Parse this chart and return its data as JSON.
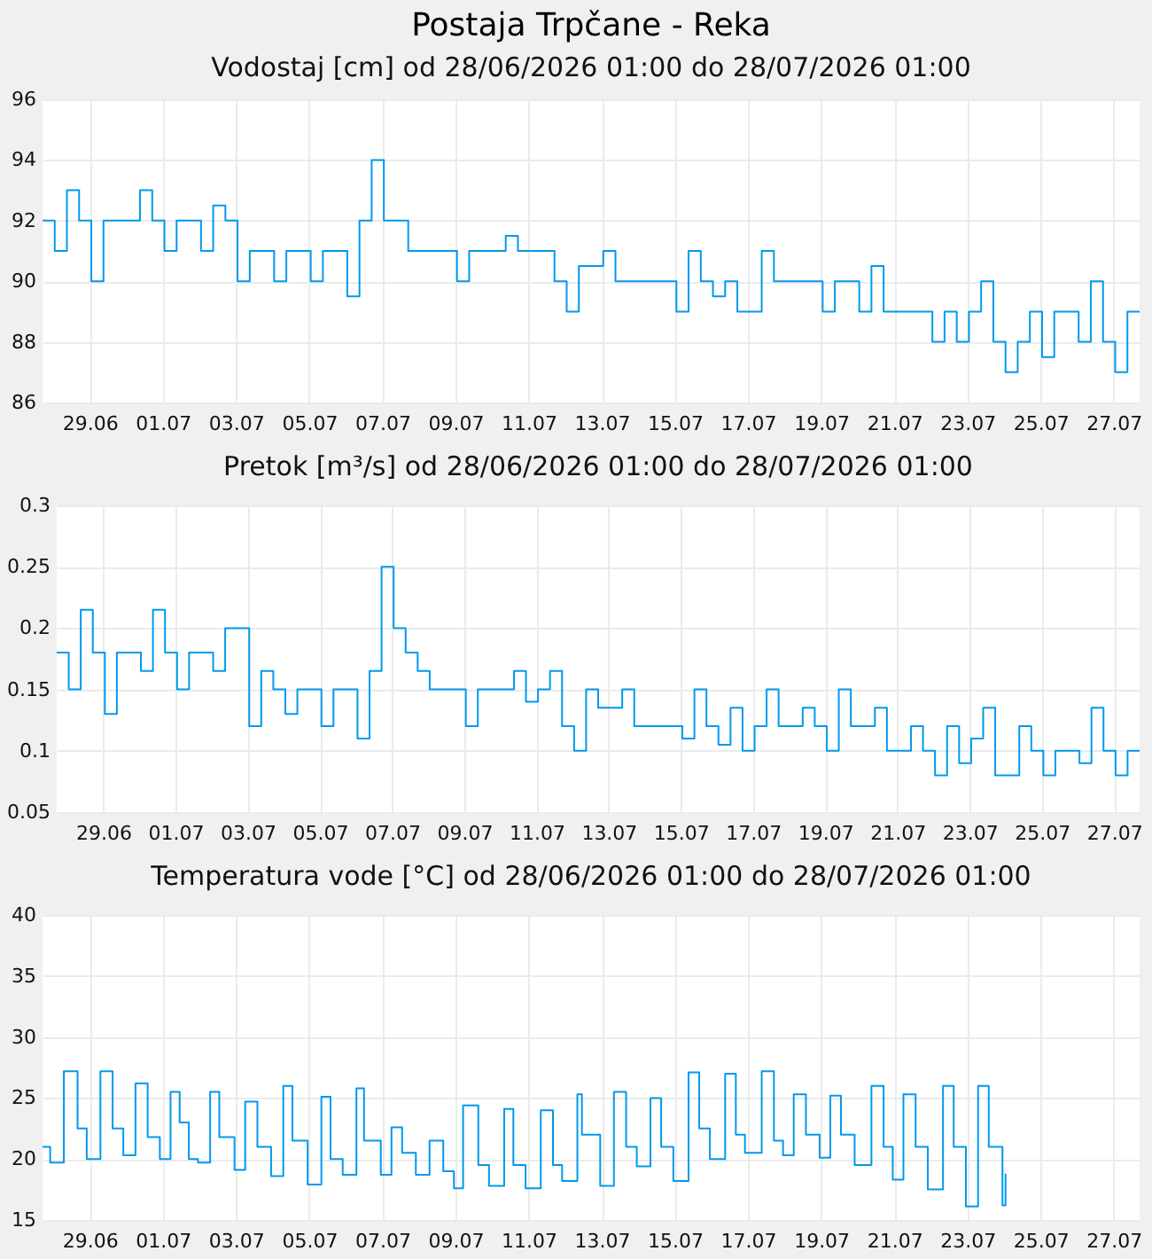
{
  "chart_data": [
    {
      "type": "step",
      "title": "Postaja Trpčane - Reka",
      "subtitle": "Vodostaj [cm] od 28/06/2026 01:00 do 28/07/2026 01:00",
      "grid": true,
      "xlim": [
        "2026-06-28T01:00",
        "2026-07-28T01:00"
      ],
      "xticks": [
        {
          "value": "2026-06-29T08:00",
          "label": "29.06"
        },
        {
          "value": "2026-07-01T08:00",
          "label": "01.07"
        },
        {
          "value": "2026-07-03T08:00",
          "label": "03.07"
        },
        {
          "value": "2026-07-05T08:00",
          "label": "05.07"
        },
        {
          "value": "2026-07-07T08:00",
          "label": "07.07"
        },
        {
          "value": "2026-07-09T08:00",
          "label": "09.07"
        },
        {
          "value": "2026-07-11T08:00",
          "label": "11.07"
        },
        {
          "value": "2026-07-13T08:00",
          "label": "13.07"
        },
        {
          "value": "2026-07-15T08:00",
          "label": "15.07"
        },
        {
          "value": "2026-07-17T08:00",
          "label": "17.07"
        },
        {
          "value": "2026-07-19T08:00",
          "label": "19.07"
        },
        {
          "value": "2026-07-21T08:00",
          "label": "21.07"
        },
        {
          "value": "2026-07-23T08:00",
          "label": "23.07"
        },
        {
          "value": "2026-07-25T08:00",
          "label": "25.07"
        },
        {
          "value": "2026-07-27T08:00",
          "label": "27.07"
        }
      ],
      "ylim": [
        86,
        96
      ],
      "yticks": [
        86,
        88,
        90,
        92,
        94,
        96
      ],
      "x": [
        "2026-06-28T01:00",
        "2026-06-28T09:00",
        "2026-06-28T17:00",
        "2026-06-29T01:00",
        "2026-06-29T09:00",
        "2026-06-29T17:00",
        "2026-06-30T01:00",
        "2026-06-30T09:00",
        "2026-06-30T17:00",
        "2026-07-01T01:00",
        "2026-07-01T09:00",
        "2026-07-01T17:00",
        "2026-07-02T01:00",
        "2026-07-02T09:00",
        "2026-07-02T17:00",
        "2026-07-03T01:00",
        "2026-07-03T09:00",
        "2026-07-03T17:00",
        "2026-07-04T01:00",
        "2026-07-04T09:00",
        "2026-07-04T17:00",
        "2026-07-05T01:00",
        "2026-07-05T09:00",
        "2026-07-05T17:00",
        "2026-07-06T01:00",
        "2026-07-06T09:00",
        "2026-07-06T17:00",
        "2026-07-07T01:00",
        "2026-07-07T09:00",
        "2026-07-07T17:00",
        "2026-07-08T01:00",
        "2026-07-08T09:00",
        "2026-07-08T17:00",
        "2026-07-09T01:00",
        "2026-07-09T09:00",
        "2026-07-09T17:00",
        "2026-07-10T01:00",
        "2026-07-10T09:00",
        "2026-07-10T17:00",
        "2026-07-11T01:00",
        "2026-07-11T09:00",
        "2026-07-11T17:00",
        "2026-07-12T01:00",
        "2026-07-12T09:00",
        "2026-07-12T17:00",
        "2026-07-13T01:00",
        "2026-07-13T09:00",
        "2026-07-13T17:00",
        "2026-07-14T01:00",
        "2026-07-14T09:00",
        "2026-07-14T17:00",
        "2026-07-15T01:00",
        "2026-07-15T09:00",
        "2026-07-15T17:00",
        "2026-07-16T01:00",
        "2026-07-16T09:00",
        "2026-07-16T17:00",
        "2026-07-17T01:00",
        "2026-07-17T09:00",
        "2026-07-17T17:00",
        "2026-07-18T01:00",
        "2026-07-18T09:00",
        "2026-07-18T17:00",
        "2026-07-19T01:00",
        "2026-07-19T09:00",
        "2026-07-19T17:00",
        "2026-07-20T01:00",
        "2026-07-20T09:00",
        "2026-07-20T17:00",
        "2026-07-21T01:00",
        "2026-07-21T09:00",
        "2026-07-21T17:00",
        "2026-07-22T01:00",
        "2026-07-22T09:00",
        "2026-07-22T17:00",
        "2026-07-23T01:00",
        "2026-07-23T09:00",
        "2026-07-23T17:00",
        "2026-07-24T01:00",
        "2026-07-24T09:00",
        "2026-07-24T17:00",
        "2026-07-25T01:00",
        "2026-07-25T09:00",
        "2026-07-25T17:00",
        "2026-07-26T01:00",
        "2026-07-26T09:00",
        "2026-07-26T17:00",
        "2026-07-27T01:00",
        "2026-07-27T09:00",
        "2026-07-27T17:00",
        "2026-07-28T01:00"
      ],
      "series": [
        {
          "color": "#0099ee",
          "values": [
            92,
            91,
            93,
            92,
            90,
            92,
            92,
            92,
            93,
            92,
            91,
            92,
            92,
            91,
            92.5,
            92,
            90,
            91,
            91,
            90,
            91,
            91,
            90,
            91,
            91,
            89.5,
            92,
            94,
            92,
            92,
            91,
            91,
            91,
            91,
            90,
            91,
            91,
            91,
            91.5,
            91,
            91,
            91,
            90,
            89,
            90.5,
            90.5,
            91,
            90,
            90,
            90,
            90,
            90,
            89,
            91,
            90,
            89.5,
            90,
            89,
            89,
            91,
            90,
            90,
            90,
            90,
            89,
            90,
            90,
            89,
            90.5,
            89,
            89,
            89,
            89,
            88,
            89,
            88,
            89,
            90,
            88,
            87,
            88,
            89,
            87.5,
            89,
            89,
            88,
            90,
            88,
            87,
            89,
            89
          ]
        }
      ]
    },
    {
      "type": "step",
      "title": "Pretok [m³/s] od 28/06/2026 01:00 do 28/07/2026 01:00",
      "grid": true,
      "xlim": [
        "2026-06-28T01:00",
        "2026-07-28T01:00"
      ],
      "xticks": [
        {
          "value": "2026-06-29T08:00",
          "label": "29.06"
        },
        {
          "value": "2026-07-01T08:00",
          "label": "01.07"
        },
        {
          "value": "2026-07-03T08:00",
          "label": "03.07"
        },
        {
          "value": "2026-07-05T08:00",
          "label": "05.07"
        },
        {
          "value": "2026-07-07T08:00",
          "label": "07.07"
        },
        {
          "value": "2026-07-09T08:00",
          "label": "09.07"
        },
        {
          "value": "2026-07-11T08:00",
          "label": "11.07"
        },
        {
          "value": "2026-07-13T08:00",
          "label": "13.07"
        },
        {
          "value": "2026-07-15T08:00",
          "label": "15.07"
        },
        {
          "value": "2026-07-17T08:00",
          "label": "17.07"
        },
        {
          "value": "2026-07-19T08:00",
          "label": "19.07"
        },
        {
          "value": "2026-07-21T08:00",
          "label": "21.07"
        },
        {
          "value": "2026-07-23T08:00",
          "label": "23.07"
        },
        {
          "value": "2026-07-25T08:00",
          "label": "25.07"
        },
        {
          "value": "2026-07-27T08:00",
          "label": "27.07"
        }
      ],
      "ylim": [
        0.05,
        0.3
      ],
      "yticks": [
        0.05,
        0.1,
        0.15,
        0.2,
        0.25,
        0.3
      ],
      "x": [
        "2026-06-28T01:00",
        "2026-06-28T09:00",
        "2026-06-28T17:00",
        "2026-06-29T01:00",
        "2026-06-29T09:00",
        "2026-06-29T17:00",
        "2026-06-30T01:00",
        "2026-06-30T09:00",
        "2026-06-30T17:00",
        "2026-07-01T01:00",
        "2026-07-01T09:00",
        "2026-07-01T17:00",
        "2026-07-02T01:00",
        "2026-07-02T09:00",
        "2026-07-02T17:00",
        "2026-07-03T01:00",
        "2026-07-03T09:00",
        "2026-07-03T17:00",
        "2026-07-04T01:00",
        "2026-07-04T09:00",
        "2026-07-04T17:00",
        "2026-07-05T01:00",
        "2026-07-05T09:00",
        "2026-07-05T17:00",
        "2026-07-06T01:00",
        "2026-07-06T09:00",
        "2026-07-06T17:00",
        "2026-07-07T01:00",
        "2026-07-07T09:00",
        "2026-07-07T17:00",
        "2026-07-08T01:00",
        "2026-07-08T09:00",
        "2026-07-08T17:00",
        "2026-07-09T01:00",
        "2026-07-09T09:00",
        "2026-07-09T17:00",
        "2026-07-10T01:00",
        "2026-07-10T09:00",
        "2026-07-10T17:00",
        "2026-07-11T01:00",
        "2026-07-11T09:00",
        "2026-07-11T17:00",
        "2026-07-12T01:00",
        "2026-07-12T09:00",
        "2026-07-12T17:00",
        "2026-07-13T01:00",
        "2026-07-13T09:00",
        "2026-07-13T17:00",
        "2026-07-14T01:00",
        "2026-07-14T09:00",
        "2026-07-14T17:00",
        "2026-07-15T01:00",
        "2026-07-15T09:00",
        "2026-07-15T17:00",
        "2026-07-16T01:00",
        "2026-07-16T09:00",
        "2026-07-16T17:00",
        "2026-07-17T01:00",
        "2026-07-17T09:00",
        "2026-07-17T17:00",
        "2026-07-18T01:00",
        "2026-07-18T09:00",
        "2026-07-18T17:00",
        "2026-07-19T01:00",
        "2026-07-19T09:00",
        "2026-07-19T17:00",
        "2026-07-20T01:00",
        "2026-07-20T09:00",
        "2026-07-20T17:00",
        "2026-07-21T01:00",
        "2026-07-21T09:00",
        "2026-07-21T17:00",
        "2026-07-22T01:00",
        "2026-07-22T09:00",
        "2026-07-22T17:00",
        "2026-07-23T01:00",
        "2026-07-23T09:00",
        "2026-07-23T17:00",
        "2026-07-24T01:00",
        "2026-07-24T09:00",
        "2026-07-24T17:00",
        "2026-07-25T01:00",
        "2026-07-25T09:00",
        "2026-07-25T17:00",
        "2026-07-26T01:00",
        "2026-07-26T09:00",
        "2026-07-26T17:00",
        "2026-07-27T01:00",
        "2026-07-27T09:00",
        "2026-07-27T17:00",
        "2026-07-28T01:00"
      ],
      "series": [
        {
          "color": "#0099ee",
          "values": [
            0.18,
            0.15,
            0.215,
            0.18,
            0.13,
            0.18,
            0.18,
            0.165,
            0.215,
            0.18,
            0.15,
            0.18,
            0.18,
            0.165,
            0.2,
            0.2,
            0.12,
            0.165,
            0.15,
            0.13,
            0.15,
            0.15,
            0.12,
            0.15,
            0.15,
            0.11,
            0.165,
            0.25,
            0.2,
            0.18,
            0.165,
            0.15,
            0.15,
            0.15,
            0.12,
            0.15,
            0.15,
            0.15,
            0.165,
            0.14,
            0.15,
            0.165,
            0.12,
            0.1,
            0.15,
            0.135,
            0.135,
            0.15,
            0.12,
            0.12,
            0.12,
            0.12,
            0.11,
            0.15,
            0.12,
            0.105,
            0.135,
            0.1,
            0.12,
            0.15,
            0.12,
            0.12,
            0.135,
            0.12,
            0.1,
            0.15,
            0.12,
            0.12,
            0.135,
            0.1,
            0.1,
            0.12,
            0.1,
            0.08,
            0.12,
            0.09,
            0.11,
            0.135,
            0.08,
            0.08,
            0.12,
            0.1,
            0.08,
            0.1,
            0.1,
            0.09,
            0.135,
            0.1,
            0.08,
            0.1,
            0.1
          ]
        }
      ]
    },
    {
      "type": "step",
      "title": "Temperatura vode [°C] od 28/06/2026 01:00 do 28/07/2026 01:00",
      "grid": true,
      "xlim": [
        "2026-06-28T01:00",
        "2026-07-28T01:00"
      ],
      "xticks": [
        {
          "value": "2026-06-29T08:00",
          "label": "29.06"
        },
        {
          "value": "2026-07-01T08:00",
          "label": "01.07"
        },
        {
          "value": "2026-07-03T08:00",
          "label": "03.07"
        },
        {
          "value": "2026-07-05T08:00",
          "label": "05.07"
        },
        {
          "value": "2026-07-07T08:00",
          "label": "07.07"
        },
        {
          "value": "2026-07-09T08:00",
          "label": "09.07"
        },
        {
          "value": "2026-07-11T08:00",
          "label": "11.07"
        },
        {
          "value": "2026-07-13T08:00",
          "label": "13.07"
        },
        {
          "value": "2026-07-15T08:00",
          "label": "15.07"
        },
        {
          "value": "2026-07-17T08:00",
          "label": "17.07"
        },
        {
          "value": "2026-07-19T08:00",
          "label": "19.07"
        },
        {
          "value": "2026-07-21T08:00",
          "label": "21.07"
        },
        {
          "value": "2026-07-23T08:00",
          "label": "23.07"
        },
        {
          "value": "2026-07-25T08:00",
          "label": "25.07"
        },
        {
          "value": "2026-07-27T08:00",
          "label": "27.07"
        }
      ],
      "ylim": [
        15,
        40
      ],
      "yticks": [
        15,
        20,
        25,
        30,
        35,
        40
      ],
      "x": [
        "2026-06-28T01:00",
        "2026-06-28T06:00",
        "2026-06-28T15:00",
        "2026-06-29T00:00",
        "2026-06-29T06:00",
        "2026-06-29T15:00",
        "2026-06-29T23:00",
        "2026-06-30T06:00",
        "2026-06-30T14:00",
        "2026-06-30T22:00",
        "2026-07-01T06:00",
        "2026-07-01T13:00",
        "2026-07-01T19:00",
        "2026-07-02T01:00",
        "2026-07-02T07:00",
        "2026-07-02T15:00",
        "2026-07-02T21:00",
        "2026-07-03T07:00",
        "2026-07-03T14:00",
        "2026-07-03T22:00",
        "2026-07-04T07:00",
        "2026-07-04T15:00",
        "2026-07-04T21:00",
        "2026-07-05T07:00",
        "2026-07-05T16:00",
        "2026-07-05T22:00",
        "2026-07-06T06:00",
        "2026-07-06T15:00",
        "2026-07-06T20:00",
        "2026-07-07T07:00",
        "2026-07-07T14:00",
        "2026-07-07T21:00",
        "2026-07-08T06:00",
        "2026-07-08T15:00",
        "2026-07-09T00:00",
        "2026-07-09T07:00",
        "2026-07-09T13:00",
        "2026-07-09T23:00",
        "2026-07-10T06:00",
        "2026-07-10T16:00",
        "2026-07-10T22:00",
        "2026-07-11T06:00",
        "2026-07-11T16:00",
        "2026-07-12T00:00",
        "2026-07-12T06:00",
        "2026-07-12T16:00",
        "2026-07-12T19:00",
        "2026-07-13T07:00",
        "2026-07-13T16:00",
        "2026-07-14T00:00",
        "2026-07-14T07:00",
        "2026-07-14T16:00",
        "2026-07-14T23:00",
        "2026-07-15T07:00",
        "2026-07-15T17:00",
        "2026-07-16T00:00",
        "2026-07-16T07:00",
        "2026-07-16T17:00",
        "2026-07-17T00:00",
        "2026-07-17T06:00",
        "2026-07-17T17:00",
        "2026-07-18T01:00",
        "2026-07-18T07:00",
        "2026-07-18T14:00",
        "2026-07-18T22:00",
        "2026-07-19T07:00",
        "2026-07-19T14:00",
        "2026-07-19T21:00",
        "2026-07-20T06:00",
        "2026-07-20T17:00",
        "2026-07-21T01:00",
        "2026-07-21T07:00",
        "2026-07-21T14:00",
        "2026-07-21T22:00",
        "2026-07-22T06:00",
        "2026-07-22T16:00",
        "2026-07-22T23:00",
        "2026-07-23T07:00",
        "2026-07-23T15:00",
        "2026-07-23T22:00",
        "2026-07-24T07:00",
        "2026-07-24T09:00"
      ],
      "series": [
        {
          "color": "#0099ee",
          "values": [
            21,
            19.7,
            27.2,
            22.5,
            20,
            27.2,
            22.5,
            20.3,
            26.2,
            21.8,
            20,
            25.5,
            23,
            20,
            19.7,
            25.5,
            21.8,
            19.1,
            24.7,
            21,
            18.6,
            26,
            21.5,
            17.9,
            25.1,
            20,
            18.7,
            25.8,
            21.5,
            18.7,
            22.6,
            20.5,
            18.7,
            21.5,
            19,
            17.6,
            24.4,
            19.5,
            17.8,
            24.1,
            19.5,
            17.6,
            24,
            19.5,
            18.2,
            25.3,
            22,
            17.8,
            25.5,
            21,
            19.4,
            25,
            21,
            18.2,
            27.1,
            22.5,
            20,
            27,
            22,
            20.5,
            27.2,
            21.5,
            20.3,
            25.3,
            22,
            20.1,
            25.2,
            22,
            19.5,
            26,
            21,
            18.3,
            25.3,
            21,
            17.5,
            26,
            21,
            16.1,
            26,
            21,
            16.2,
            18.8
          ]
        }
      ]
    }
  ]
}
